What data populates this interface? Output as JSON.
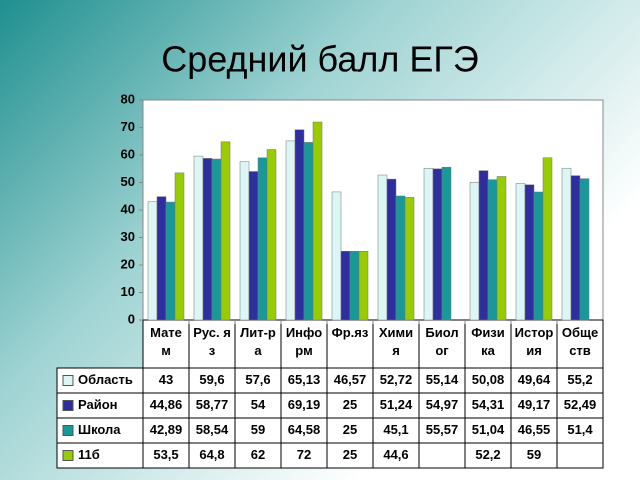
{
  "chart_data": {
    "type": "bar",
    "title": "Средний балл ЕГЭ",
    "categories": [
      "Матем",
      "Рус. яз",
      "Лит-ра",
      "Информ",
      "Фр.яз",
      "Химия",
      "Биолог",
      "Физика",
      "История",
      "Обществ"
    ],
    "series": [
      {
        "name": "Область",
        "color": "#dcf5f5",
        "values": [
          43,
          59.6,
          57.6,
          65.13,
          46.57,
          52.72,
          55.14,
          50.08,
          49.64,
          55.2
        ],
        "value_labels": [
          "43",
          "59,6",
          "57,6",
          "65,13",
          "46,57",
          "52,72",
          "55,14",
          "50,08",
          "49,64",
          "55,2"
        ]
      },
      {
        "name": "Район",
        "color": "#2e2e9e",
        "values": [
          44.86,
          58.77,
          54,
          69.19,
          25,
          51.24,
          54.97,
          54.31,
          49.17,
          52.49
        ],
        "value_labels": [
          "44,86",
          "58,77",
          "54",
          "69,19",
          "25",
          "51,24",
          "54,97",
          "54,31",
          "49,17",
          "52,49"
        ]
      },
      {
        "name": "Школа",
        "color": "#17999a",
        "values": [
          42.89,
          58.54,
          59,
          64.58,
          25,
          45.1,
          55.57,
          51.04,
          46.55,
          51.4
        ],
        "value_labels": [
          "42,89",
          "58,54",
          "59",
          "64,58",
          "25",
          "45,1",
          "55,57",
          "51,04",
          "46,55",
          "51,4"
        ]
      },
      {
        "name": "11б",
        "color": "#99cc00",
        "values": [
          53.5,
          64.8,
          62,
          72,
          25,
          44.6,
          null,
          52.2,
          59,
          null
        ],
        "value_labels": [
          "53,5",
          "64,8",
          "62",
          "72",
          "25",
          "44,6",
          null,
          "52,2",
          "59",
          null
        ]
      }
    ],
    "ylim": [
      0,
      80
    ],
    "yticks": [
      0,
      10,
      20,
      30,
      40,
      50,
      60,
      70,
      80
    ],
    "grid": false
  }
}
